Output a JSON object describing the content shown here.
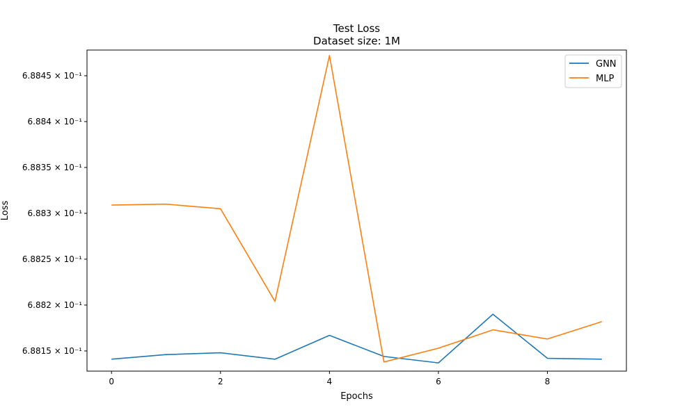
{
  "chart_data": {
    "type": "line",
    "title": "Test Loss",
    "subtitle": "Dataset size: 1M",
    "xlabel": "Epochs",
    "ylabel": "Loss",
    "x": [
      0,
      1,
      2,
      3,
      4,
      5,
      6,
      7,
      8,
      9
    ],
    "xticks": [
      0,
      2,
      4,
      6,
      8
    ],
    "xlim": [
      -0.45,
      9.45
    ],
    "yscale": "log",
    "ylim": [
      0.688128,
      0.688478
    ],
    "yticks": [
      {
        "value": 0.68815,
        "label": "6.8815 × 10⁻¹"
      },
      {
        "value": 0.6882,
        "label": "6.882 × 10⁻¹"
      },
      {
        "value": 0.68825,
        "label": "6.8825 × 10⁻¹"
      },
      {
        "value": 0.6883,
        "label": "6.883 × 10⁻¹"
      },
      {
        "value": 0.68835,
        "label": "6.8835 × 10⁻¹"
      },
      {
        "value": 0.6884,
        "label": "6.884 × 10⁻¹"
      },
      {
        "value": 0.68845,
        "label": "6.8845 × 10⁻¹"
      }
    ],
    "legend": "top-right",
    "grid": false,
    "series": [
      {
        "name": "GNN",
        "color": "#1f77b4",
        "values": [
          0.688141,
          0.688146,
          0.688148,
          0.688141,
          0.688167,
          0.688144,
          0.688137,
          0.68819,
          0.688142,
          0.688141
        ]
      },
      {
        "name": "MLP",
        "color": "#ff7f0e",
        "values": [
          0.688309,
          0.68831,
          0.688305,
          0.688204,
          0.688472,
          0.688138,
          0.688153,
          0.688173,
          0.688163,
          0.688182
        ]
      }
    ]
  }
}
